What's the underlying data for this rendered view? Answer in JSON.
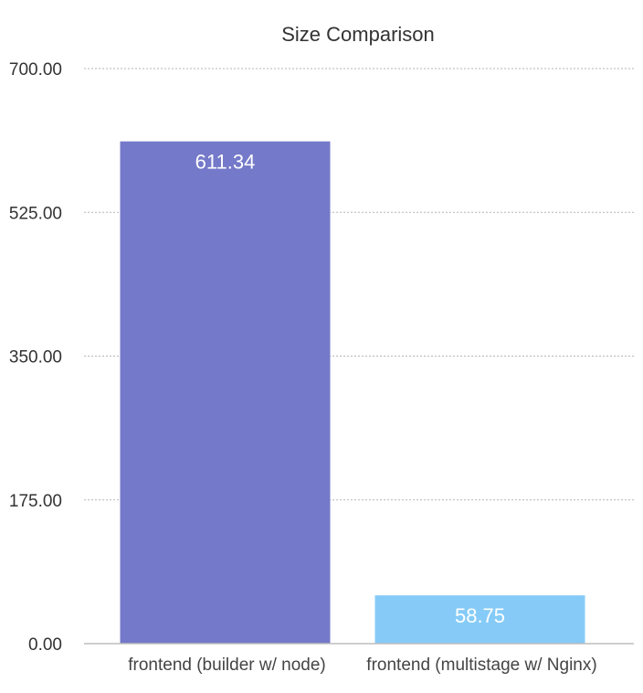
{
  "chart_data": {
    "type": "bar",
    "title": "Size Comparison",
    "xlabel": "",
    "ylabel": "",
    "categories": [
      "frontend (builder w/ node)",
      "frontend (multistage w/ Nginx)"
    ],
    "values": [
      611.34,
      58.75
    ],
    "data_labels": [
      "611.34",
      "58.75"
    ],
    "yticks": [
      "0.00",
      "175.00",
      "350.00",
      "525.00",
      "700.00"
    ],
    "ylim": [
      0,
      700
    ],
    "grid": true,
    "legend": "none",
    "colors": [
      "#7479c9",
      "#86cbf7"
    ]
  }
}
